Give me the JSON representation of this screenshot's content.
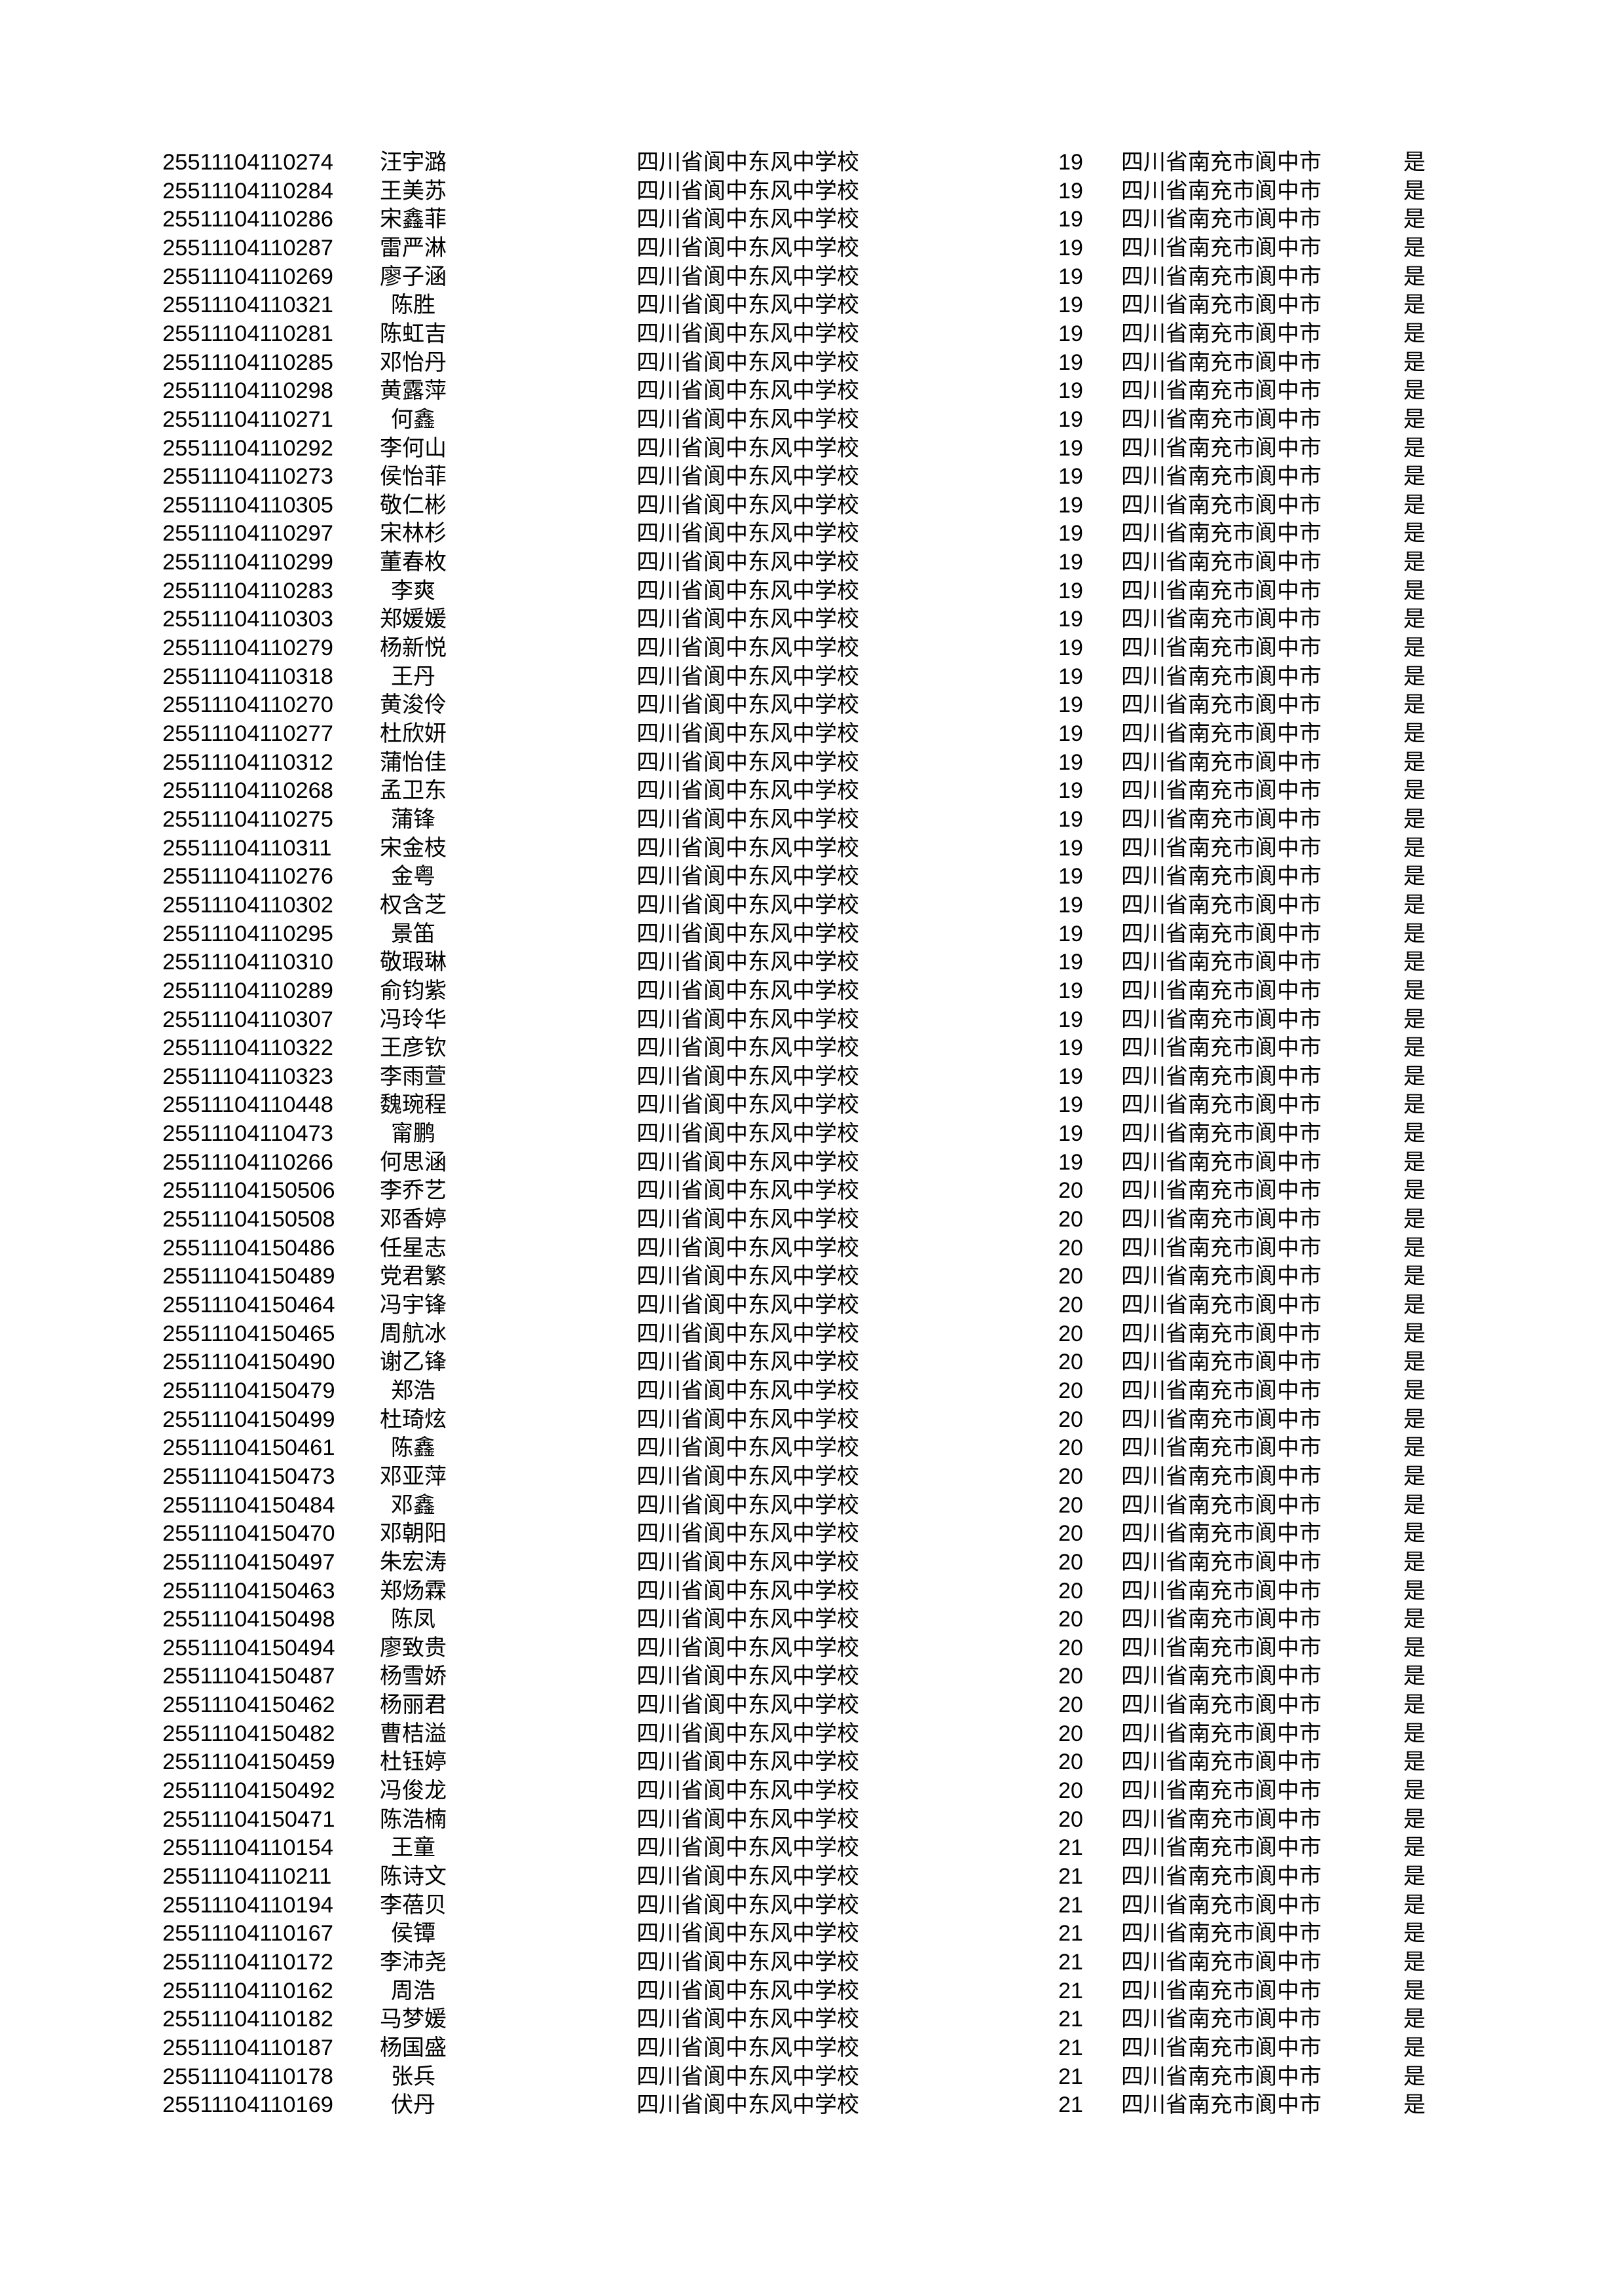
{
  "table": {
    "rows": [
      [
        "25511104110274",
        "汪宇潞",
        "四川省阆中东风中学校",
        "19",
        "四川省南充市阆中市",
        "是"
      ],
      [
        "25511104110284",
        "王美苏",
        "四川省阆中东风中学校",
        "19",
        "四川省南充市阆中市",
        "是"
      ],
      [
        "25511104110286",
        "宋鑫菲",
        "四川省阆中东风中学校",
        "19",
        "四川省南充市阆中市",
        "是"
      ],
      [
        "25511104110287",
        "雷严淋",
        "四川省阆中东风中学校",
        "19",
        "四川省南充市阆中市",
        "是"
      ],
      [
        "25511104110269",
        "廖子涵",
        "四川省阆中东风中学校",
        "19",
        "四川省南充市阆中市",
        "是"
      ],
      [
        "25511104110321",
        "陈胜",
        "四川省阆中东风中学校",
        "19",
        "四川省南充市阆中市",
        "是"
      ],
      [
        "25511104110281",
        "陈虹吉",
        "四川省阆中东风中学校",
        "19",
        "四川省南充市阆中市",
        "是"
      ],
      [
        "25511104110285",
        "邓怡丹",
        "四川省阆中东风中学校",
        "19",
        "四川省南充市阆中市",
        "是"
      ],
      [
        "25511104110298",
        "黄露萍",
        "四川省阆中东风中学校",
        "19",
        "四川省南充市阆中市",
        "是"
      ],
      [
        "25511104110271",
        "何鑫",
        "四川省阆中东风中学校",
        "19",
        "四川省南充市阆中市",
        "是"
      ],
      [
        "25511104110292",
        "李何山",
        "四川省阆中东风中学校",
        "19",
        "四川省南充市阆中市",
        "是"
      ],
      [
        "25511104110273",
        "侯怡菲",
        "四川省阆中东风中学校",
        "19",
        "四川省南充市阆中市",
        "是"
      ],
      [
        "25511104110305",
        "敬仁彬",
        "四川省阆中东风中学校",
        "19",
        "四川省南充市阆中市",
        "是"
      ],
      [
        "25511104110297",
        "宋林杉",
        "四川省阆中东风中学校",
        "19",
        "四川省南充市阆中市",
        "是"
      ],
      [
        "25511104110299",
        "董春枚",
        "四川省阆中东风中学校",
        "19",
        "四川省南充市阆中市",
        "是"
      ],
      [
        "25511104110283",
        "李爽",
        "四川省阆中东风中学校",
        "19",
        "四川省南充市阆中市",
        "是"
      ],
      [
        "25511104110303",
        "郑媛媛",
        "四川省阆中东风中学校",
        "19",
        "四川省南充市阆中市",
        "是"
      ],
      [
        "25511104110279",
        "杨新悦",
        "四川省阆中东风中学校",
        "19",
        "四川省南充市阆中市",
        "是"
      ],
      [
        "25511104110318",
        "王丹",
        "四川省阆中东风中学校",
        "19",
        "四川省南充市阆中市",
        "是"
      ],
      [
        "25511104110270",
        "黄浚伶",
        "四川省阆中东风中学校",
        "19",
        "四川省南充市阆中市",
        "是"
      ],
      [
        "25511104110277",
        "杜欣妍",
        "四川省阆中东风中学校",
        "19",
        "四川省南充市阆中市",
        "是"
      ],
      [
        "25511104110312",
        "蒲怡佳",
        "四川省阆中东风中学校",
        "19",
        "四川省南充市阆中市",
        "是"
      ],
      [
        "25511104110268",
        "孟卫东",
        "四川省阆中东风中学校",
        "19",
        "四川省南充市阆中市",
        "是"
      ],
      [
        "25511104110275",
        "蒲锋",
        "四川省阆中东风中学校",
        "19",
        "四川省南充市阆中市",
        "是"
      ],
      [
        "25511104110311",
        "宋金枝",
        "四川省阆中东风中学校",
        "19",
        "四川省南充市阆中市",
        "是"
      ],
      [
        "25511104110276",
        "金粤",
        "四川省阆中东风中学校",
        "19",
        "四川省南充市阆中市",
        "是"
      ],
      [
        "25511104110302",
        "权含芝",
        "四川省阆中东风中学校",
        "19",
        "四川省南充市阆中市",
        "是"
      ],
      [
        "25511104110295",
        "景笛",
        "四川省阆中东风中学校",
        "19",
        "四川省南充市阆中市",
        "是"
      ],
      [
        "25511104110310",
        "敬瑕琳",
        "四川省阆中东风中学校",
        "19",
        "四川省南充市阆中市",
        "是"
      ],
      [
        "25511104110289",
        "俞钧紫",
        "四川省阆中东风中学校",
        "19",
        "四川省南充市阆中市",
        "是"
      ],
      [
        "25511104110307",
        "冯玲华",
        "四川省阆中东风中学校",
        "19",
        "四川省南充市阆中市",
        "是"
      ],
      [
        "25511104110322",
        "王彦钦",
        "四川省阆中东风中学校",
        "19",
        "四川省南充市阆中市",
        "是"
      ],
      [
        "25511104110323",
        "李雨萱",
        "四川省阆中东风中学校",
        "19",
        "四川省南充市阆中市",
        "是"
      ],
      [
        "25511104110448",
        "魏琬程",
        "四川省阆中东风中学校",
        "19",
        "四川省南充市阆中市",
        "是"
      ],
      [
        "25511104110473",
        "甯鹏",
        "四川省阆中东风中学校",
        "19",
        "四川省南充市阆中市",
        "是"
      ],
      [
        "25511104110266",
        "何思涵",
        "四川省阆中东风中学校",
        "19",
        "四川省南充市阆中市",
        "是"
      ],
      [
        "25511104150506",
        "李乔艺",
        "四川省阆中东风中学校",
        "20",
        "四川省南充市阆中市",
        "是"
      ],
      [
        "25511104150508",
        "邓香婷",
        "四川省阆中东风中学校",
        "20",
        "四川省南充市阆中市",
        "是"
      ],
      [
        "25511104150486",
        "任星志",
        "四川省阆中东风中学校",
        "20",
        "四川省南充市阆中市",
        "是"
      ],
      [
        "25511104150489",
        "党君繁",
        "四川省阆中东风中学校",
        "20",
        "四川省南充市阆中市",
        "是"
      ],
      [
        "25511104150464",
        "冯宇锋",
        "四川省阆中东风中学校",
        "20",
        "四川省南充市阆中市",
        "是"
      ],
      [
        "25511104150465",
        "周航冰",
        "四川省阆中东风中学校",
        "20",
        "四川省南充市阆中市",
        "是"
      ],
      [
        "25511104150490",
        "谢乙锋",
        "四川省阆中东风中学校",
        "20",
        "四川省南充市阆中市",
        "是"
      ],
      [
        "25511104150479",
        "郑浩",
        "四川省阆中东风中学校",
        "20",
        "四川省南充市阆中市",
        "是"
      ],
      [
        "25511104150499",
        "杜琦炫",
        "四川省阆中东风中学校",
        "20",
        "四川省南充市阆中市",
        "是"
      ],
      [
        "25511104150461",
        "陈鑫",
        "四川省阆中东风中学校",
        "20",
        "四川省南充市阆中市",
        "是"
      ],
      [
        "25511104150473",
        "邓亚萍",
        "四川省阆中东风中学校",
        "20",
        "四川省南充市阆中市",
        "是"
      ],
      [
        "25511104150484",
        "邓鑫",
        "四川省阆中东风中学校",
        "20",
        "四川省南充市阆中市",
        "是"
      ],
      [
        "25511104150470",
        "邓朝阳",
        "四川省阆中东风中学校",
        "20",
        "四川省南充市阆中市",
        "是"
      ],
      [
        "25511104150497",
        "朱宏涛",
        "四川省阆中东风中学校",
        "20",
        "四川省南充市阆中市",
        "是"
      ],
      [
        "25511104150463",
        "郑炀霖",
        "四川省阆中东风中学校",
        "20",
        "四川省南充市阆中市",
        "是"
      ],
      [
        "25511104150498",
        "陈凤",
        "四川省阆中东风中学校",
        "20",
        "四川省南充市阆中市",
        "是"
      ],
      [
        "25511104150494",
        "廖致贵",
        "四川省阆中东风中学校",
        "20",
        "四川省南充市阆中市",
        "是"
      ],
      [
        "25511104150487",
        "杨雪娇",
        "四川省阆中东风中学校",
        "20",
        "四川省南充市阆中市",
        "是"
      ],
      [
        "25511104150462",
        "杨丽君",
        "四川省阆中东风中学校",
        "20",
        "四川省南充市阆中市",
        "是"
      ],
      [
        "25511104150482",
        "曹桔溢",
        "四川省阆中东风中学校",
        "20",
        "四川省南充市阆中市",
        "是"
      ],
      [
        "25511104150459",
        "杜钰婷",
        "四川省阆中东风中学校",
        "20",
        "四川省南充市阆中市",
        "是"
      ],
      [
        "25511104150492",
        "冯俊龙",
        "四川省阆中东风中学校",
        "20",
        "四川省南充市阆中市",
        "是"
      ],
      [
        "25511104150471",
        "陈浩楠",
        "四川省阆中东风中学校",
        "20",
        "四川省南充市阆中市",
        "是"
      ],
      [
        "25511104110154",
        "王童",
        "四川省阆中东风中学校",
        "21",
        "四川省南充市阆中市",
        "是"
      ],
      [
        "25511104110211",
        "陈诗文",
        "四川省阆中东风中学校",
        "21",
        "四川省南充市阆中市",
        "是"
      ],
      [
        "25511104110194",
        "李蓓贝",
        "四川省阆中东风中学校",
        "21",
        "四川省南充市阆中市",
        "是"
      ],
      [
        "25511104110167",
        "侯镡",
        "四川省阆中东风中学校",
        "21",
        "四川省南充市阆中市",
        "是"
      ],
      [
        "25511104110172",
        "李沛尧",
        "四川省阆中东风中学校",
        "21",
        "四川省南充市阆中市",
        "是"
      ],
      [
        "25511104110162",
        "周浩",
        "四川省阆中东风中学校",
        "21",
        "四川省南充市阆中市",
        "是"
      ],
      [
        "25511104110182",
        "马梦媛",
        "四川省阆中东风中学校",
        "21",
        "四川省南充市阆中市",
        "是"
      ],
      [
        "25511104110187",
        "杨国盛",
        "四川省阆中东风中学校",
        "21",
        "四川省南充市阆中市",
        "是"
      ],
      [
        "25511104110178",
        "张兵",
        "四川省阆中东风中学校",
        "21",
        "四川省南充市阆中市",
        "是"
      ],
      [
        "25511104110169",
        "伏丹",
        "四川省阆中东风中学校",
        "21",
        "四川省南充市阆中市",
        "是"
      ]
    ]
  }
}
